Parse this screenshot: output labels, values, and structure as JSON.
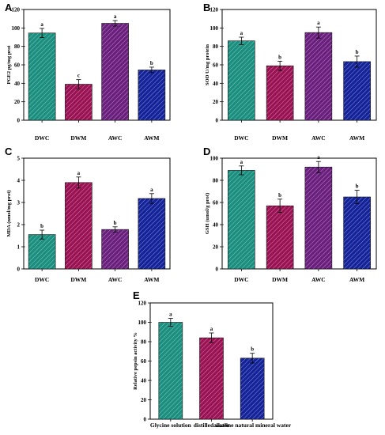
{
  "chart_data": [
    {
      "panel": "A",
      "type": "bar",
      "categories": [
        "DWC",
        "DWM",
        "AWC",
        "AWM"
      ],
      "values": [
        94.5,
        39,
        105,
        54.5
      ],
      "errors": [
        5,
        5,
        3,
        3
      ],
      "significance": [
        "a",
        "c",
        "a",
        "b"
      ],
      "colors": [
        "#1a8f7f",
        "#9b1254",
        "#6a1f7e",
        "#14239a"
      ],
      "ylabel": "PGE2 pg/mg prot",
      "ylim": [
        0,
        120
      ],
      "yticks": [
        0,
        20,
        40,
        60,
        80,
        100,
        120
      ],
      "xlabel": "",
      "title": ""
    },
    {
      "panel": "B",
      "type": "bar",
      "categories": [
        "DWC",
        "DWM",
        "AWC",
        "AWM"
      ],
      "values": [
        86,
        59,
        95,
        63.5
      ],
      "errors": [
        4,
        5,
        6,
        6
      ],
      "significance": [
        "a",
        "b",
        "a",
        "b"
      ],
      "colors": [
        "#1a8f7f",
        "#9b1254",
        "#6a1f7e",
        "#14239a"
      ],
      "ylabel": "SOD U/mg protein",
      "ylim": [
        0,
        120
      ],
      "yticks": [
        0,
        20,
        40,
        60,
        80,
        100,
        120
      ],
      "xlabel": "",
      "title": ""
    },
    {
      "panel": "C",
      "type": "bar",
      "categories": [
        "DWC",
        "DWM",
        "AWC",
        "AWM"
      ],
      "values": [
        1.55,
        3.9,
        1.78,
        3.18
      ],
      "errors": [
        0.2,
        0.25,
        0.12,
        0.22
      ],
      "significance": [
        "b",
        "a",
        "b",
        "a"
      ],
      "colors": [
        "#1a8f7f",
        "#9b1254",
        "#6a1f7e",
        "#14239a"
      ],
      "ylabel": "MDA (nmol/mg prot)",
      "ylim": [
        0,
        5
      ],
      "yticks": [
        0,
        1,
        2,
        3,
        4,
        5
      ],
      "xlabel": "",
      "title": ""
    },
    {
      "panel": "D",
      "type": "bar",
      "categories": [
        "DWC",
        "DWM",
        "AWC",
        "AWM"
      ],
      "values": [
        89,
        57,
        92,
        65
      ],
      "errors": [
        4,
        6,
        5,
        6
      ],
      "significance": [
        "a",
        "b",
        "a",
        "b"
      ],
      "colors": [
        "#1a8f7f",
        "#9b1254",
        "#6a1f7e",
        "#14239a"
      ],
      "ylabel": "GSH (umol/g prot)",
      "ylim": [
        0,
        100
      ],
      "yticks": [
        0,
        20,
        40,
        60,
        80,
        100
      ],
      "xlabel": "",
      "title": ""
    },
    {
      "panel": "E",
      "type": "bar",
      "categories": [
        "Glycine solution",
        "distilled water",
        "alkaline natural mineral water"
      ],
      "values": [
        100,
        84,
        63
      ],
      "errors": [
        4,
        5,
        5
      ],
      "significance": [
        "a",
        "a",
        "b"
      ],
      "colors": [
        "#1a8f7f",
        "#9b1254",
        "#14239a"
      ],
      "ylabel": "Relative pepsin activity %",
      "ylim": [
        0,
        120
      ],
      "yticks": [
        0,
        20,
        40,
        60,
        80,
        100,
        120
      ],
      "xlabel": "",
      "title": ""
    }
  ]
}
